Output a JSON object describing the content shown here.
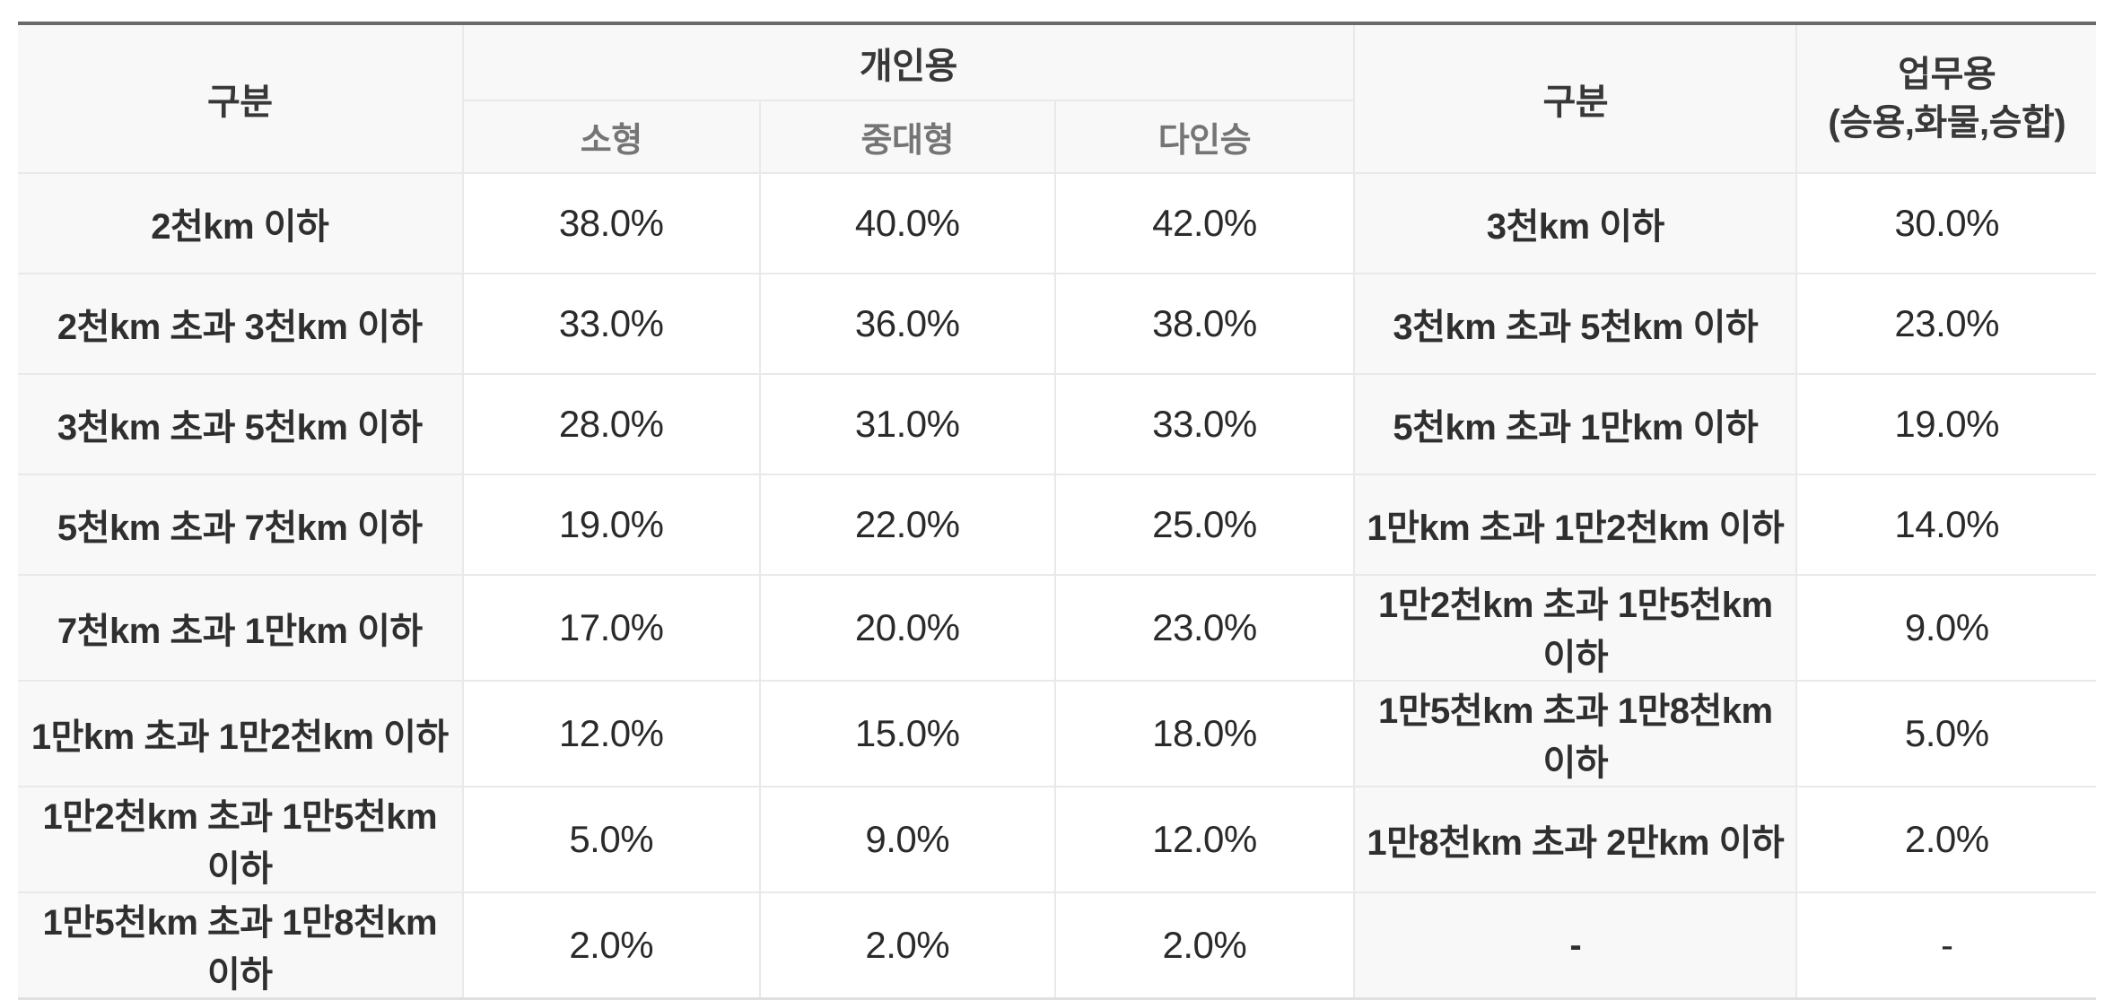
{
  "colors": {
    "top_border": "#6a6a6a",
    "bottom_border": "#e0e0e0",
    "grid_line": "#e9e9e9",
    "header_bg": "#f8f8f8",
    "label_column_bg": "#f8f8f8",
    "value_cell_bg": "#ffffff",
    "header_text": "#383838",
    "subheader_text": "#757575",
    "label_text": "#2f2f2f",
    "value_text": "#2a2a2a"
  },
  "table": {
    "header": {
      "left_group_label": "구분",
      "personal_group_label": "개인용",
      "personal_columns": [
        "소형",
        "중대형",
        "다인승"
      ],
      "right_group_label": "구분",
      "business_label_line1": "업무용",
      "business_label_line2": "(승용,화물,승합)"
    },
    "rows": [
      {
        "left_label": "2천km 이하",
        "small": "38.0%",
        "mid_large": "40.0%",
        "multi": "42.0%",
        "right_label": "3천km 이하",
        "business": "30.0%"
      },
      {
        "left_label": "2천km 초과 3천km 이하",
        "small": "33.0%",
        "mid_large": "36.0%",
        "multi": "38.0%",
        "right_label": "3천km 초과 5천km 이하",
        "business": "23.0%"
      },
      {
        "left_label": "3천km 초과 5천km 이하",
        "small": "28.0%",
        "mid_large": "31.0%",
        "multi": "33.0%",
        "right_label": "5천km 초과 1만km 이하",
        "business": "19.0%"
      },
      {
        "left_label": "5천km 초과 7천km 이하",
        "small": "19.0%",
        "mid_large": "22.0%",
        "multi": "25.0%",
        "right_label": "1만km 초과 1만2천km 이하",
        "business": "14.0%"
      },
      {
        "left_label": "7천km 초과 1만km 이하",
        "small": "17.0%",
        "mid_large": "20.0%",
        "multi": "23.0%",
        "right_label": "1만2천km 초과 1만5천km 이하",
        "business": "9.0%"
      },
      {
        "left_label": "1만km 초과 1만2천km 이하",
        "small": "12.0%",
        "mid_large": "15.0%",
        "multi": "18.0%",
        "right_label": "1만5천km 초과 1만8천km 이하",
        "business": "5.0%"
      },
      {
        "left_label": "1만2천km 초과 1만5천km 이하",
        "small": "5.0%",
        "mid_large": "9.0%",
        "multi": "12.0%",
        "right_label": "1만8천km 초과 2만km 이하",
        "business": "2.0%"
      },
      {
        "left_label": "1만5천km 초과 1만8천km 이하",
        "small": "2.0%",
        "mid_large": "2.0%",
        "multi": "2.0%",
        "right_label": "-",
        "business": "-"
      }
    ]
  }
}
